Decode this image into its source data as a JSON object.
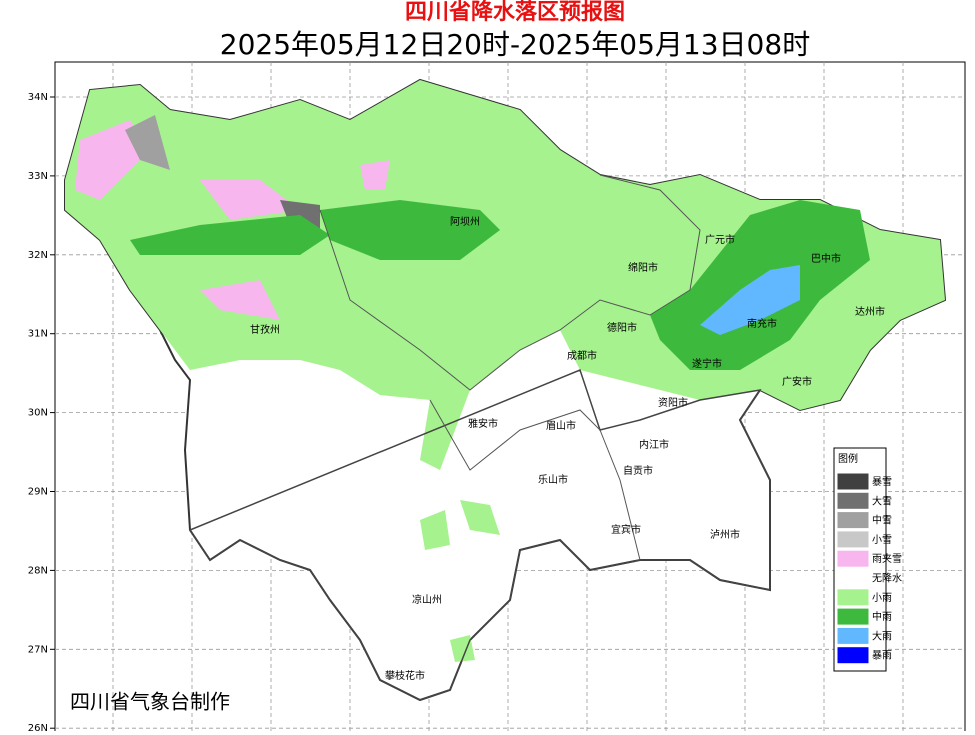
{
  "header": {
    "title": "四川省降水落区预报图",
    "subtitle": "2025年05月12日20时-2025年05月13日08时"
  },
  "lat_labels": [
    "34N",
    "33N",
    "32N",
    "31N",
    "30N",
    "29N",
    "28N",
    "27N",
    "26N"
  ],
  "cities": [
    "阿坝州",
    "广元市",
    "巴中市",
    "绵阳市",
    "达州市",
    "甘孜州",
    "德阳市",
    "南充市",
    "成都市",
    "遂宁市",
    "广安市",
    "资阳市",
    "雅安市",
    "眉山市",
    "内江市",
    "自贡市",
    "乐山市",
    "宜宾市",
    "泸州市",
    "凉山州",
    "攀枝花市"
  ],
  "legend": {
    "title": "图例",
    "items": [
      {
        "label": "暴雪",
        "color": "#404040"
      },
      {
        "label": "大雪",
        "color": "#707070"
      },
      {
        "label": "中雪",
        "color": "#a0a0a0"
      },
      {
        "label": "小雪",
        "color": "#c8c8c8"
      },
      {
        "label": "雨夹雪",
        "color": "#f7b6ee"
      },
      {
        "label": "无降水",
        "color": "#ffffff"
      },
      {
        "label": "小雨",
        "color": "#a6f28f"
      },
      {
        "label": "中雨",
        "color": "#3dba3d"
      },
      {
        "label": "大雨",
        "color": "#61b8ff"
      },
      {
        "label": "暴雨",
        "color": "#0000fe"
      }
    ]
  },
  "footer": "四川省气象台制作"
}
